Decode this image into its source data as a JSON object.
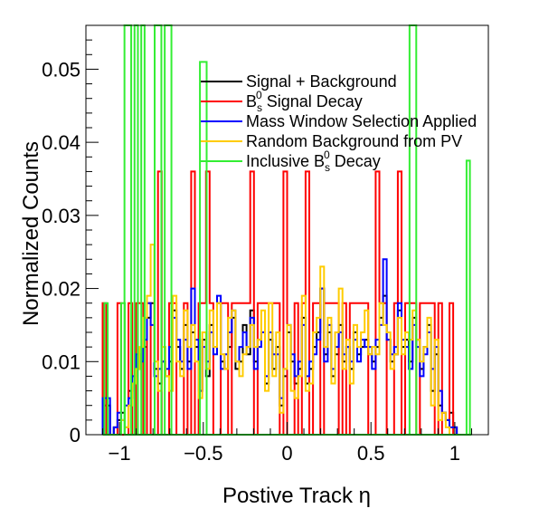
{
  "chart_data": {
    "type": "histogram-step",
    "xlabel": "Postive Track  η",
    "ylabel": "Normalized Counts",
    "xlim": [
      -1.2,
      1.2
    ],
    "ylim": [
      0,
      0.056
    ],
    "x_ticks": [
      {
        "value": -1,
        "label": "−1"
      },
      {
        "value": -0.5,
        "label": "−0.5"
      },
      {
        "value": 0,
        "label": "0"
      },
      {
        "value": 0.5,
        "label": "0.5"
      },
      {
        "value": 1,
        "label": "1"
      }
    ],
    "y_ticks": [
      {
        "value": 0,
        "label": "0"
      },
      {
        "value": 0.01,
        "label": "0.01"
      },
      {
        "value": 0.02,
        "label": "0.02"
      },
      {
        "value": 0.03,
        "label": "0.03"
      },
      {
        "value": 0.04,
        "label": "0.04"
      },
      {
        "value": 0.05,
        "label": "0.05"
      }
    ],
    "bin_start": -1.1,
    "bin_width": 0.022,
    "series": [
      {
        "name": "Signal + Background",
        "color": "#000000",
        "values": [
          0.004,
          0.004,
          0.0,
          0.001,
          0.002,
          0.003,
          0.001,
          0.006,
          0.007,
          0.009,
          0.01,
          0.012,
          0.016,
          0.018,
          0.009,
          0.007,
          0.01,
          0.008,
          0.01,
          0.017,
          0.012,
          0.009,
          0.015,
          0.01,
          0.014,
          0.012,
          0.006,
          0.013,
          0.008,
          0.015,
          0.012,
          0.018,
          0.01,
          0.009,
          0.012,
          0.016,
          0.009,
          0.01,
          0.015,
          0.011,
          0.017,
          0.01,
          0.013,
          0.014,
          0.007,
          0.013,
          0.009,
          0.012,
          0.004,
          0.008,
          0.014,
          0.01,
          0.007,
          0.009,
          0.016,
          0.007,
          0.009,
          0.012,
          0.014,
          0.02,
          0.011,
          0.014,
          0.008,
          0.011,
          0.015,
          0.01,
          0.012,
          0.009,
          0.014,
          0.011,
          0.012,
          0.013,
          0.011,
          0.01,
          0.012,
          0.016,
          0.019,
          0.013,
          0.01,
          0.011,
          0.017,
          0.012,
          0.013,
          0.01,
          0.016,
          0.013,
          0.009,
          0.012,
          0.015,
          0.006,
          0.011,
          0.004,
          0.003,
          0.002,
          0.003,
          0.001,
          0.0,
          0.0,
          0.0,
          0.0
        ]
      },
      {
        "name": "B_s^0 Signal Decay",
        "label_main": "B",
        "label_sub": "s",
        "label_sup": "0",
        "label_rest": " Signal Decay",
        "color": "#ff0000",
        "values": [
          0.018,
          0.0,
          0.0,
          0.0,
          0.018,
          0.0,
          0.0,
          0.018,
          0.0,
          0.018,
          0.018,
          0.0,
          0.018,
          0.0,
          0.0,
          0.036,
          0.0,
          0.0,
          0.018,
          0.018,
          0.0,
          0.0,
          0.018,
          0.0,
          0.036,
          0.0,
          0.018,
          0.018,
          0.036,
          0.018,
          0.0,
          0.0,
          0.018,
          0.018,
          0.0,
          0.018,
          0.018,
          0.018,
          0.018,
          0.018,
          0.036,
          0.0,
          0.018,
          0.018,
          0.018,
          0.018,
          0.018,
          0.018,
          0.0,
          0.036,
          0.0,
          0.0,
          0.018,
          0.0,
          0.018,
          0.036,
          0.0,
          0.018,
          0.018,
          0.0,
          0.018,
          0.018,
          0.018,
          0.018,
          0.0,
          0.018,
          0.0,
          0.018,
          0.018,
          0.018,
          0.018,
          0.018,
          0.0,
          0.0,
          0.036,
          0.018,
          0.018,
          0.0,
          0.0,
          0.018,
          0.036,
          0.0,
          0.018,
          0.018,
          0.018,
          0.0,
          0.018,
          0.018,
          0.018,
          0.018,
          0.0,
          0.018,
          0.0,
          0.0,
          0.018,
          0.0,
          0.0,
          0.0,
          0.0,
          0.0
        ]
      },
      {
        "name": "Mass Window Selection Applied",
        "color": "#0000ff",
        "values": [
          0.005,
          0.005,
          0.0,
          0.001,
          0.003,
          0.002,
          0.004,
          0.005,
          0.008,
          0.011,
          0.01,
          0.013,
          0.018,
          0.015,
          0.008,
          0.009,
          0.01,
          0.009,
          0.012,
          0.016,
          0.013,
          0.01,
          0.013,
          0.009,
          0.02,
          0.013,
          0.006,
          0.012,
          0.01,
          0.014,
          0.011,
          0.019,
          0.009,
          0.011,
          0.014,
          0.017,
          0.01,
          0.012,
          0.014,
          0.012,
          0.016,
          0.009,
          0.012,
          0.014,
          0.008,
          0.014,
          0.011,
          0.011,
          0.005,
          0.009,
          0.015,
          0.011,
          0.008,
          0.01,
          0.015,
          0.008,
          0.01,
          0.011,
          0.013,
          0.02,
          0.01,
          0.015,
          0.009,
          0.012,
          0.014,
          0.011,
          0.012,
          0.01,
          0.013,
          0.01,
          0.013,
          0.012,
          0.012,
          0.009,
          0.013,
          0.015,
          0.024,
          0.013,
          0.011,
          0.012,
          0.018,
          0.013,
          0.012,
          0.009,
          0.015,
          0.012,
          0.008,
          0.011,
          0.014,
          0.009,
          0.012,
          0.006,
          0.003,
          0.002,
          0.001,
          0.001,
          0.0,
          0.0,
          0.0,
          0.0
        ]
      },
      {
        "name": "Random Background from PV",
        "color": "#ffcc00",
        "values": [
          0.0,
          0.0,
          0.0,
          0.0,
          0.0,
          0.002,
          0.001,
          0.004,
          0.007,
          0.009,
          0.012,
          0.016,
          0.019,
          0.026,
          0.01,
          0.006,
          0.012,
          0.008,
          0.006,
          0.019,
          0.01,
          0.008,
          0.017,
          0.012,
          0.015,
          0.01,
          0.005,
          0.014,
          0.009,
          0.017,
          0.012,
          0.018,
          0.011,
          0.009,
          0.016,
          0.017,
          0.01,
          0.008,
          0.011,
          0.012,
          0.015,
          0.012,
          0.013,
          0.017,
          0.006,
          0.018,
          0.008,
          0.014,
          0.003,
          0.009,
          0.015,
          0.006,
          0.005,
          0.008,
          0.019,
          0.006,
          0.007,
          0.014,
          0.016,
          0.023,
          0.012,
          0.016,
          0.007,
          0.014,
          0.02,
          0.009,
          0.013,
          0.007,
          0.015,
          0.012,
          0.014,
          0.017,
          0.011,
          0.012,
          0.011,
          0.018,
          0.015,
          0.014,
          0.009,
          0.011,
          0.016,
          0.011,
          0.014,
          0.013,
          0.017,
          0.013,
          0.01,
          0.012,
          0.016,
          0.004,
          0.013,
          0.002,
          0.003,
          0.001,
          0.0,
          0.0,
          0.0,
          0.0,
          0.0,
          0.0
        ]
      },
      {
        "name": "Inclusive B_s^0 Decay",
        "label_main": "Inclusive B",
        "label_sub": "s",
        "label_sup": "0",
        "label_rest": " Decay",
        "color": "#33ee33",
        "values": [
          0.0,
          0.0,
          0.0,
          0.0,
          0.0,
          0.018,
          0.0,
          0.0,
          0.0,
          0.0,
          0.0,
          0.0,
          0.0,
          0.0,
          0.0,
          0.0,
          0.0,
          0.0,
          0.0,
          0.0,
          0.0,
          0.0,
          0.0,
          0.0,
          0.0,
          0.0,
          0.0,
          0.0,
          0.0,
          0.0,
          0.0,
          0.0,
          0.0,
          0.0,
          0.0,
          0.0,
          0.0,
          0.0,
          0.0,
          0.0,
          0.0,
          0.0,
          0.0,
          0.0,
          0.0,
          0.0,
          0.0,
          0.0,
          0.0,
          0.0,
          0.0,
          0.0,
          0.0,
          0.0,
          0.0,
          0.0,
          0.0,
          0.0,
          0.0,
          0.0,
          0.0,
          0.0,
          0.0,
          0.0,
          0.0,
          0.0,
          0.0,
          0.0,
          0.0,
          0.0,
          0.0,
          0.0,
          0.0,
          0.0,
          0.0,
          0.0,
          0.0,
          0.0,
          0.0,
          0.0,
          0.0,
          0.0,
          0.0,
          0.0,
          0.0,
          0.0,
          0.0,
          0.0,
          0.0,
          0.0,
          0.0,
          0.0,
          0.0,
          0.0,
          0.0,
          0.0,
          0.0,
          0.0,
          0.0,
          0.0
        ],
        "spikes": [
          {
            "x0": -1.09,
            "x1": -1.07,
            "y": 0.018
          },
          {
            "x0": -0.97,
            "x1": -0.93,
            "y": 0.056
          },
          {
            "x0": -0.91,
            "x1": -0.89,
            "y": 0.056
          },
          {
            "x0": -0.87,
            "x1": -0.85,
            "y": 0.056
          },
          {
            "x0": -0.79,
            "x1": -0.75,
            "y": 0.056
          },
          {
            "x0": -0.73,
            "x1": -0.69,
            "y": 0.056
          },
          {
            "x0": -0.52,
            "x1": -0.48,
            "y": 0.051
          },
          {
            "x0": 0.73,
            "x1": 0.77,
            "y": 0.056
          },
          {
            "x0": 1.07,
            "x1": 1.09,
            "y": 0.0375
          }
        ]
      }
    ]
  }
}
